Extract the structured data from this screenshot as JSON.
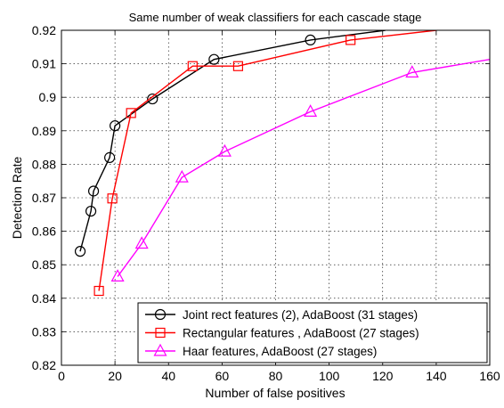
{
  "chart_data": {
    "type": "line",
    "title": "Same number of weak classifiers for each cascade stage",
    "xlabel": "Number of false positives",
    "ylabel": "Detection Rate",
    "xlim": [
      0,
      160
    ],
    "ylim": [
      0.82,
      0.92
    ],
    "x_ticks": [
      0,
      20,
      40,
      60,
      80,
      100,
      120,
      140,
      160
    ],
    "x_tick_labels": [
      "0",
      "20",
      "40",
      "60",
      "80",
      "100",
      "120",
      "140",
      "160"
    ],
    "y_ticks": [
      0.82,
      0.83,
      0.84,
      0.85,
      0.86,
      0.87,
      0.88,
      0.89,
      0.9,
      0.91,
      0.92
    ],
    "y_tick_labels": [
      "0.82",
      "0.83",
      "0.84",
      "0.85",
      "0.86",
      "0.87",
      "0.88",
      "0.89",
      "0.9",
      "0.91",
      "0.92"
    ],
    "grid": true,
    "legend_position": "bottom-right",
    "series": [
      {
        "name": "Joint rect features (2), AdaBoost (31 stages)",
        "color": "#000000",
        "marker": "circle",
        "x": [
          7,
          11,
          12,
          18,
          20,
          34,
          57,
          93,
          121
        ],
        "y": [
          0.854,
          0.866,
          0.872,
          0.882,
          0.8915,
          0.8995,
          0.9113,
          0.9171,
          0.92
        ]
      },
      {
        "name": "Rectangular features , AdaBoost (27 stages)",
        "color": "#ff0000",
        "marker": "square",
        "x": [
          14,
          19,
          26,
          49,
          66,
          108,
          140
        ],
        "y": [
          0.8422,
          0.8698,
          0.8953,
          0.9093,
          0.9093,
          0.9171,
          0.92
        ]
      },
      {
        "name": "Haar features, AdaBoost (27 stages)",
        "color": "#ff00ff",
        "marker": "triangle",
        "x": [
          21,
          30,
          45,
          61,
          93,
          131,
          160
        ],
        "y": [
          0.8465,
          0.8563,
          0.8761,
          0.8838,
          0.8957,
          0.9074,
          0.9113
        ]
      }
    ]
  }
}
